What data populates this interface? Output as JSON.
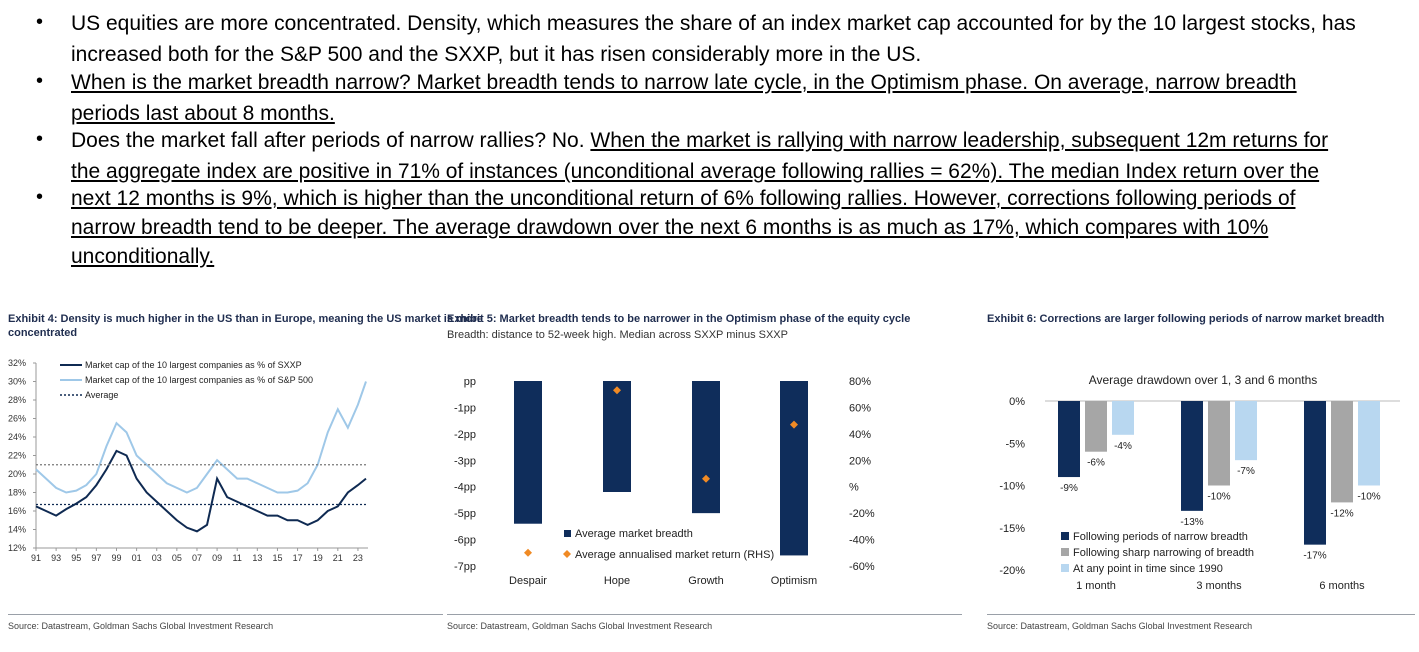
{
  "bullets": [
    {
      "parts": [
        {
          "t": "US equities are more concentrated. Density, which measures the share of an index market cap accounted for by the 10 largest stocks, has",
          "u": false
        }
      ]
    },
    {
      "parts": [
        {
          "t": "increased both for the S&P 500 and the SXXP, but it has risen considerably more in the US.",
          "u": false
        }
      ]
    },
    {
      "parts": [
        {
          "t": "When is the market breadth narrow? Market breadth tends to narrow late cycle, in the Optimism phase. On average, narrow breadth",
          "u": true
        }
      ]
    },
    {
      "parts": [
        {
          "t": "periods last about 8 months.",
          "u": true
        }
      ]
    },
    {
      "parts": [
        {
          "t": "Does the market fall after periods of narrow rallies? No. ",
          "u": false
        },
        {
          "t": "When the market is rallying with narrow leadership, subsequent 12m returns for",
          "u": true
        }
      ]
    },
    {
      "parts": [
        {
          "t": "the aggregate index are positive in 71% of instances (unconditional average following rallies = 62%). The median Index return over the",
          "u": true
        }
      ]
    },
    {
      "parts": [
        {
          "t": "next 12 months is 9%, which is higher than the unconditional return of 6% following rallies. However, corrections following periods of",
          "u": true
        }
      ]
    },
    {
      "parts": [
        {
          "t": "narrow breadth tend to be deeper. The average drawdown over the next 6 months is as much as 17%, which compares with 10%",
          "u": true
        }
      ]
    },
    {
      "parts": [
        {
          "t": "unconditionally.",
          "u": true
        }
      ]
    }
  ],
  "bullet_dots": [
    true,
    false,
    true,
    false,
    true,
    false,
    true,
    false,
    false
  ],
  "exhibits": {
    "ex4": {
      "title_line1": "Exhibit 4: Density is much higher in the US than in Europe, meaning the US market is more",
      "title_line2": "concentrated",
      "source": "Source: Datastream, Goldman Sachs Global Investment Research"
    },
    "ex5": {
      "title": "Exhibit 5: Market breadth tends to be narrower in the Optimism phase of the equity cycle",
      "subtitle": "Breadth: distance to 52-week high. Median across SXXP minus SXXP",
      "source": "Source: Datastream, Goldman Sachs Global Investment Research"
    },
    "ex6": {
      "title": "Exhibit 6: Corrections are larger following periods of narrow market breadth",
      "source": "Source: Datastream, Goldman Sachs Global Investment Research"
    }
  },
  "chart_data": [
    {
      "type": "line",
      "x_ticks": [
        "91",
        "93",
        "95",
        "97",
        "99",
        "01",
        "03",
        "05",
        "07",
        "09",
        "11",
        "13",
        "15",
        "17",
        "19",
        "21",
        "23"
      ],
      "y_ticks": [
        "32%",
        "30%",
        "28%",
        "26%",
        "24%",
        "22%",
        "20%",
        "18%",
        "16%",
        "14%",
        "12%"
      ],
      "ylim": [
        12,
        32
      ],
      "xlim": [
        1991,
        2024
      ],
      "series": [
        {
          "name": "Market cap of the 10 largest companies as % of SXXP",
          "color": "#0f2a52",
          "x": [
            1991,
            1992,
            1993,
            1994,
            1995,
            1996,
            1997,
            1998,
            1999,
            2000,
            2001,
            2002,
            2003,
            2004,
            2005,
            2006,
            2007,
            2008,
            2009,
            2010,
            2011,
            2012,
            2013,
            2014,
            2015,
            2016,
            2017,
            2018,
            2019,
            2020,
            2021,
            2022,
            2023,
            2023.8
          ],
          "y": [
            16.5,
            16.0,
            15.5,
            16.2,
            16.8,
            17.5,
            18.8,
            20.5,
            22.5,
            22.0,
            19.5,
            18.0,
            17.0,
            16.0,
            15.0,
            14.2,
            13.8,
            14.5,
            19.5,
            17.5,
            17.0,
            16.5,
            16.0,
            15.5,
            15.5,
            15.0,
            15.0,
            14.5,
            15.0,
            16.0,
            16.5,
            18.0,
            18.8,
            19.5
          ]
        },
        {
          "name": "Market cap of the 10 largest companies as % of S&P 500",
          "color": "#9fc8e8",
          "x": [
            1991,
            1992,
            1993,
            1994,
            1995,
            1996,
            1997,
            1998,
            1999,
            2000,
            2001,
            2002,
            2003,
            2004,
            2005,
            2006,
            2007,
            2008,
            2009,
            2010,
            2011,
            2012,
            2013,
            2014,
            2015,
            2016,
            2017,
            2018,
            2019,
            2020,
            2021,
            2022,
            2023,
            2023.8
          ],
          "y": [
            20.5,
            19.5,
            18.5,
            18.0,
            18.2,
            18.8,
            20.0,
            23.0,
            25.5,
            24.5,
            22.0,
            21.0,
            20.0,
            19.0,
            18.5,
            18.0,
            18.5,
            20.0,
            21.5,
            20.5,
            19.5,
            19.5,
            19.0,
            18.5,
            18.0,
            18.0,
            18.2,
            19.0,
            21.0,
            24.5,
            27.0,
            25.0,
            27.5,
            30.0
          ]
        },
        {
          "name": "Average",
          "color": "#0f2a52",
          "dash": true,
          "x": [
            1991,
            2024
          ],
          "y": [
            16.7,
            16.7
          ]
        },
        {
          "name": "",
          "color": "#777777",
          "dash": true,
          "x": [
            1991,
            2024
          ],
          "y": [
            21.0,
            21.0
          ]
        }
      ]
    },
    {
      "type": "bar",
      "categories": [
        "Despair",
        "Hope",
        "Growth",
        "Optimism"
      ],
      "series": [
        {
          "name": "Average market breadth",
          "color": "#0f2d5b",
          "values": [
            -5.4,
            -4.2,
            -5.0,
            -6.6
          ]
        },
        {
          "name": "Average annualised market return (RHS)",
          "color": "#f08a24",
          "marker": "diamond",
          "values": [
            -50,
            73,
            6,
            47
          ]
        }
      ],
      "y_ticks": [
        "pp",
        "-1pp",
        "-2pp",
        "-3pp",
        "-4pp",
        "-5pp",
        "-6pp",
        "-7pp"
      ],
      "y2_ticks": [
        "80%",
        "60%",
        "40%",
        "20%",
        "%",
        "-20%",
        "-40%",
        "-60%"
      ],
      "ylim": [
        -7,
        0
      ],
      "y2lim": [
        -60,
        80
      ]
    },
    {
      "type": "bar",
      "title": "Average drawdown over 1, 3 and 6 months",
      "categories": [
        "1 month",
        "3 months",
        "6 months"
      ],
      "series": [
        {
          "name": "Following periods of narrow breadth",
          "color": "#0f2d5b",
          "values": [
            -9,
            -13,
            -17
          ],
          "labels": [
            "-9%",
            "-13%",
            "-17%"
          ]
        },
        {
          "name": "Following sharp narrowing of breadth",
          "color": "#a6a6a6",
          "values": [
            -6,
            -10,
            -12
          ],
          "labels": [
            "-6%",
            "-10%",
            "-12%"
          ]
        },
        {
          "name": "At any point in time since 1990",
          "color": "#b8d7f0",
          "values": [
            -4,
            -7,
            -10
          ],
          "labels": [
            "-4%",
            "-7%",
            "-10%"
          ]
        }
      ],
      "y_ticks": [
        "0%",
        "-5%",
        "-10%",
        "-15%",
        "-20%"
      ],
      "ylim": [
        -20,
        0
      ]
    }
  ]
}
